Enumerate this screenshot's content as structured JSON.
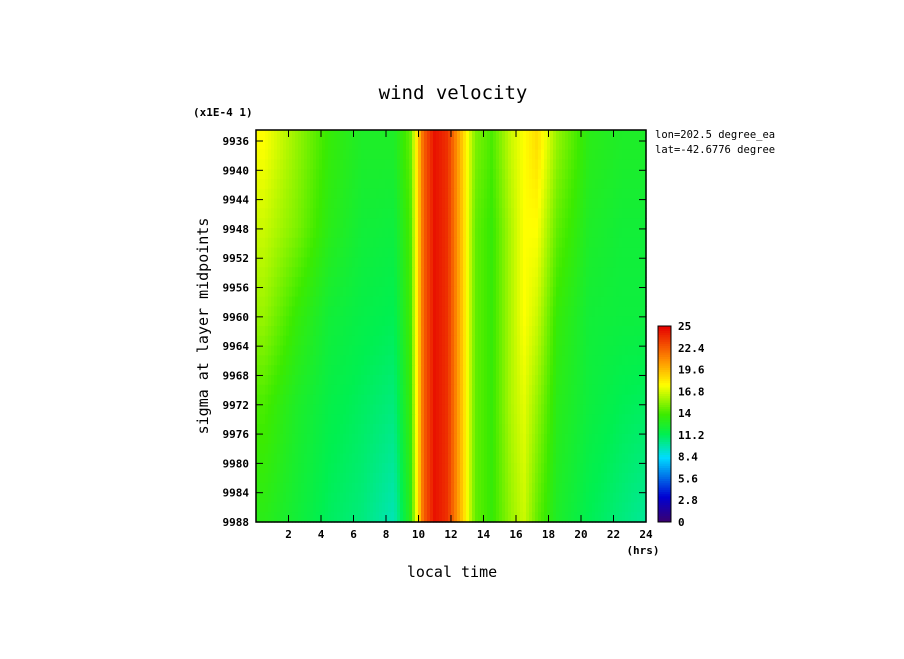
{
  "chart_data": {
    "type": "heatmap",
    "title": "wind velocity",
    "xlabel": "local time",
    "ylabel": "sigma at layer midpoints",
    "x_unit": "(hrs)",
    "y_scale_note": "(x1E-4 1)",
    "annotations": [
      "lon=202.5 degree_ea",
      "lat=-42.6776 degree"
    ],
    "x_ticks": [
      2,
      4,
      6,
      8,
      10,
      12,
      14,
      16,
      18,
      20,
      22,
      24
    ],
    "y_ticks": [
      9936,
      9940,
      9944,
      9948,
      9952,
      9956,
      9960,
      9964,
      9968,
      9972,
      9976,
      9980,
      9984,
      9988
    ],
    "xlim": [
      0,
      24
    ],
    "ylim": [
      9988,
      9934.5
    ],
    "colorbar": {
      "ticks": [
        "0",
        "2.8",
        "5.6",
        "8.4",
        "11.2",
        "14",
        "16.8",
        "19.6",
        "22.4",
        "25"
      ],
      "range": [
        0,
        25
      ]
    },
    "x": [
      0.5,
      2.5,
      4.5,
      6.5,
      8.5,
      9.5,
      10.3,
      11,
      11.8,
      12.8,
      13.5,
      14.5,
      15.7,
      16.5,
      17.3,
      18.5,
      20.5,
      22.5,
      24
    ],
    "y": [
      9936,
      9948,
      9960,
      9972,
      9988
    ],
    "values": [
      [
        17.5,
        15.5,
        13.5,
        12.5,
        12.5,
        14.5,
        22,
        24.5,
        23.5,
        18.5,
        15,
        14,
        16.5,
        17.5,
        18.5,
        15.5,
        13,
        12.5,
        12.5
      ],
      [
        16.5,
        15,
        13,
        12,
        11.8,
        14,
        22,
        24.5,
        23.5,
        18.5,
        14.5,
        13.5,
        16,
        17.5,
        17.5,
        14.5,
        12.5,
        12,
        12
      ],
      [
        15.5,
        13.5,
        12,
        11.5,
        11.2,
        13.8,
        22,
        24.5,
        23.5,
        18.5,
        14.5,
        13.5,
        16,
        17.5,
        16.5,
        13.5,
        12,
        11.8,
        11.8
      ],
      [
        14,
        12.5,
        11.5,
        11,
        10.5,
        13.5,
        22,
        24.5,
        23.5,
        18.5,
        14.5,
        13.5,
        16,
        17,
        15.5,
        13,
        11.8,
        11.2,
        11
      ],
      [
        13,
        12,
        11,
        10.5,
        9.5,
        13,
        22,
        24.5,
        23.5,
        18.5,
        14.5,
        13.5,
        15.5,
        16.5,
        14.5,
        12.5,
        11.2,
        10.5,
        10
      ]
    ]
  }
}
